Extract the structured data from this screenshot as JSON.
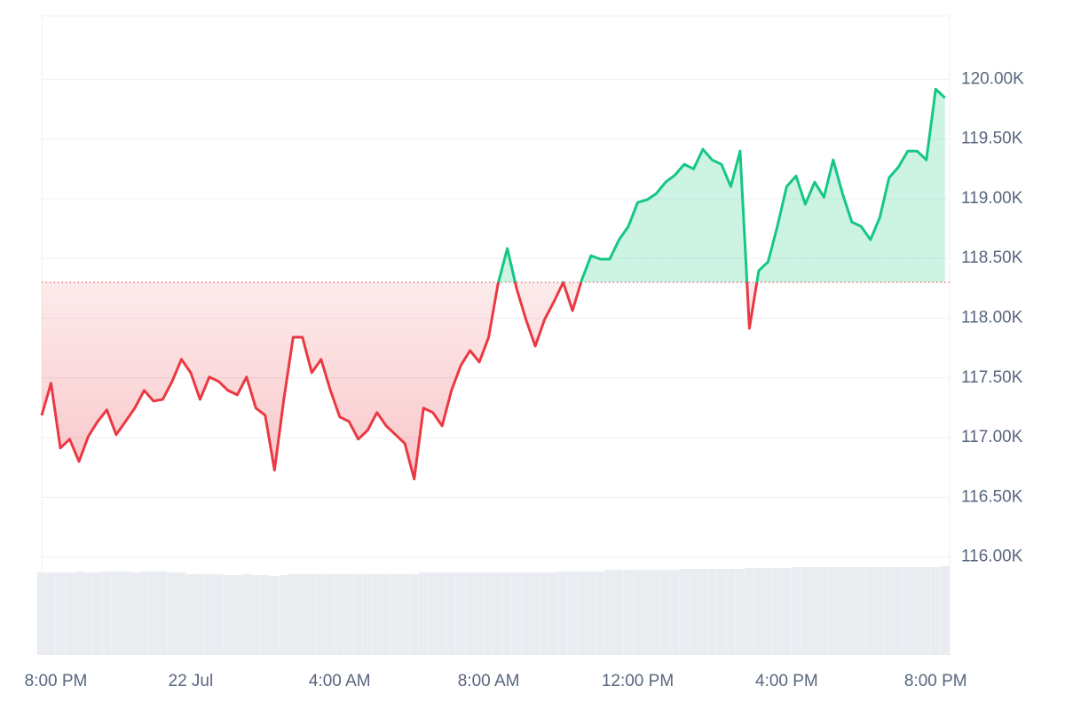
{
  "chart_data": {
    "type": "line",
    "values": [
      117187,
      117455,
      116913,
      116987,
      116800,
      117010,
      117135,
      117232,
      117024,
      117135,
      117247,
      117395,
      117306,
      117320,
      117470,
      117655,
      117544,
      117320,
      117507,
      117470,
      117395,
      117358,
      117507,
      117247,
      117187,
      116727,
      117320,
      117840,
      117840,
      117544,
      117655,
      117395,
      117173,
      117135,
      116987,
      117061,
      117210,
      117098,
      117024,
      116950,
      116653,
      117247,
      117210,
      117098,
      117395,
      117603,
      117729,
      117633,
      117840,
      118286,
      118583,
      118249,
      117989,
      117766,
      117989,
      118137,
      118300,
      118063,
      118323,
      118523,
      118494,
      118494,
      118657,
      118768,
      118969,
      118991,
      119043,
      119139,
      119198,
      119288,
      119250,
      119414,
      119325,
      119288,
      119102,
      119399,
      117915,
      118397,
      118471,
      118768,
      119102,
      119191,
      118954,
      119139,
      119013,
      119325,
      119043,
      118805,
      118768,
      118657,
      118843,
      119176,
      119265,
      119399,
      119399,
      119325,
      119918,
      119844
    ],
    "xlim": [
      0,
      97.5
    ],
    "xticks": [
      {
        "value": 0,
        "label": "8:00 PM"
      },
      {
        "value": 16,
        "label": "22 Jul"
      },
      {
        "value": 32,
        "label": "4:00 AM"
      },
      {
        "value": 48,
        "label": "8:00 AM"
      },
      {
        "value": 64,
        "label": "12:00 PM"
      },
      {
        "value": 80,
        "label": "4:00 PM"
      },
      {
        "value": 96,
        "label": "8:00 PM"
      }
    ],
    "ylim": [
      115180,
      120530
    ],
    "yticks": [
      {
        "value": 116000,
        "label": "116.00K"
      },
      {
        "value": 116500,
        "label": "116.50K"
      },
      {
        "value": 117000,
        "label": "117.00K"
      },
      {
        "value": 117500,
        "label": "117.50K"
      },
      {
        "value": 118000,
        "label": "118.00K"
      },
      {
        "value": 118500,
        "label": "118.50K"
      },
      {
        "value": 119000,
        "label": "119.00K"
      },
      {
        "value": 119500,
        "label": "119.50K"
      },
      {
        "value": 120000,
        "label": "120.00K"
      }
    ],
    "grid": true,
    "baseline": 118300,
    "up_color": "#16c784",
    "down_color": "#ea3943",
    "volume": [
      93,
      93,
      93,
      93,
      94,
      93,
      93,
      94,
      94,
      94,
      93,
      94,
      94,
      94,
      93,
      93,
      91,
      91,
      91,
      91,
      90,
      90,
      91,
      90,
      90,
      89,
      90,
      91,
      91,
      91,
      91,
      91,
      91,
      91,
      91,
      91,
      91,
      91,
      91,
      91,
      91,
      93,
      93,
      93,
      93,
      93,
      93,
      93,
      93,
      93,
      93,
      93,
      93,
      93,
      93,
      93,
      94,
      94,
      94,
      94,
      94,
      96,
      96,
      96,
      96,
      96,
      96,
      96,
      96,
      97,
      97,
      97,
      97,
      97,
      97,
      97,
      98,
      98,
      98,
      98,
      98,
      99,
      99,
      99,
      99,
      99,
      99,
      99,
      99,
      99,
      99,
      99,
      99,
      99,
      99,
      99,
      99,
      100
    ],
    "volume_ylim": [
      0,
      110
    ],
    "volume_color": "#e9ecf0"
  }
}
